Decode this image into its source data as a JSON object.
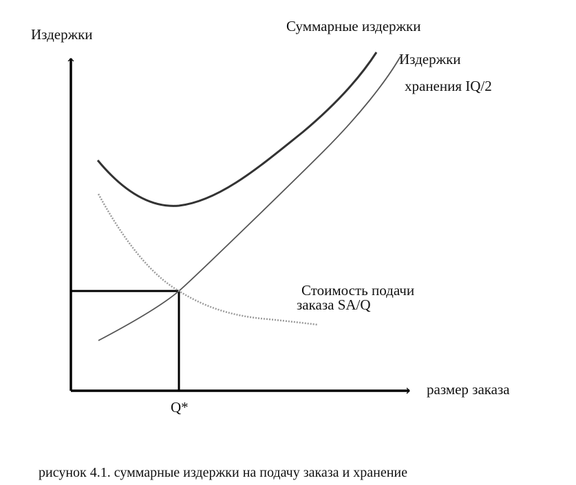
{
  "axes": {
    "y_label": "Издержки",
    "x_label": "размер заказа"
  },
  "curves": {
    "total_label": "Суммарные издержки",
    "holding_label_line1": "Издержки",
    "holding_label_line2": "хранения IQ/2",
    "ordering_label_line1": "Стоимость подачи",
    "ordering_label_line2": "заказа SA/Q"
  },
  "optimum": {
    "label": "Q*"
  },
  "caption": "рисунок 4.1. суммарные издержки на подачу заказа и хранение"
}
